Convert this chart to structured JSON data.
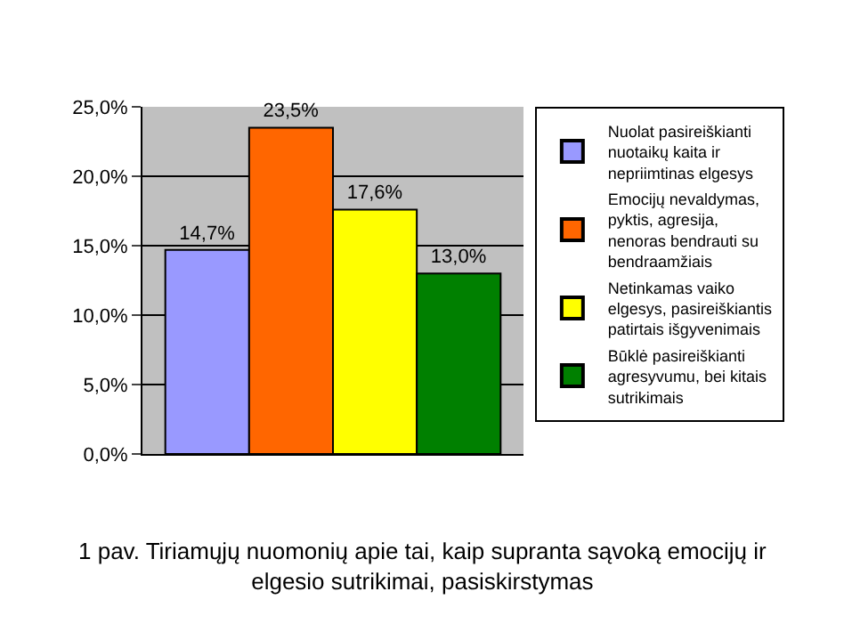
{
  "chart_data": {
    "type": "bar",
    "categories": [
      null
    ],
    "series": [
      {
        "name": "Nuolat pasireiškianti nuotaikų kaita ir nepriimtinas elgesys",
        "color": "#9999ff",
        "values": [
          14.7
        ],
        "value_labels": [
          "14,7%"
        ]
      },
      {
        "name": "Emocijų nevaldymas, pyktis, agresija, nenoras bendrauti su bendraamžiais",
        "color": "#ff6600",
        "values": [
          23.5
        ],
        "value_labels": [
          "23,5%"
        ]
      },
      {
        "name": "Netinkamas vaiko elgesys, pasireiškiantis patirtais išgyvenimais",
        "color": "#ffff00",
        "values": [
          17.6
        ],
        "value_labels": [
          "17,6%"
        ]
      },
      {
        "name": "Būklė pasireiškianti agresyvumu, bei kitais sutrikimais",
        "color": "#008000",
        "values": [
          13.0
        ],
        "value_labels": [
          "13,0%"
        ]
      }
    ],
    "ylim": [
      0,
      25
    ],
    "yticks": [
      {
        "value": 0,
        "label": "0,0%"
      },
      {
        "value": 5,
        "label": "5,0%"
      },
      {
        "value": 10,
        "label": "10,0%"
      },
      {
        "value": 15,
        "label": "15,0%"
      },
      {
        "value": 20,
        "label": "20,0%"
      },
      {
        "value": 25,
        "label": "25,0%"
      }
    ],
    "grid": "y",
    "legend": "right",
    "annotations": [
      "1 pav. Tiriamųjų nuomonių apie tai, kaip supranta sąvoką emocijų ir elgesio sutrikimai, pasiskirstymas"
    ]
  }
}
